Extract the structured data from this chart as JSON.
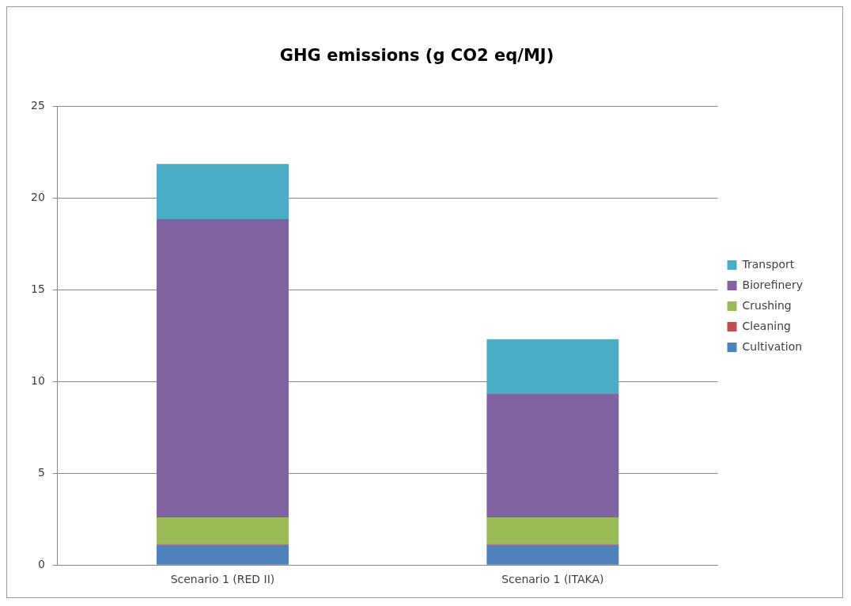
{
  "chart_data": {
    "type": "bar",
    "title": "GHG emissions (g CO2 eq/MJ)",
    "categories": [
      "Scenario 1 (RED II)",
      "Scenario 1 (ITAKA)"
    ],
    "stacked": true,
    "series": [
      {
        "name": "Cultivation",
        "color": "#4f81bd",
        "values": [
          1.1,
          1.1
        ]
      },
      {
        "name": "Cleaning",
        "color": "#c0504d",
        "values": [
          0.05,
          0.05
        ]
      },
      {
        "name": "Crushing",
        "color": "#9bbb59",
        "values": [
          1.45,
          1.45
        ]
      },
      {
        "name": "Biorefinery",
        "color": "#8064a2",
        "values": [
          16.25,
          6.75
        ]
      },
      {
        "name": "Transport",
        "color": "#4bacc6",
        "values": [
          3.0,
          2.95
        ]
      }
    ],
    "ylim": [
      0,
      25
    ],
    "yticks": [
      0,
      5,
      10,
      15,
      20,
      25
    ],
    "grid": "y",
    "legend": "right"
  }
}
